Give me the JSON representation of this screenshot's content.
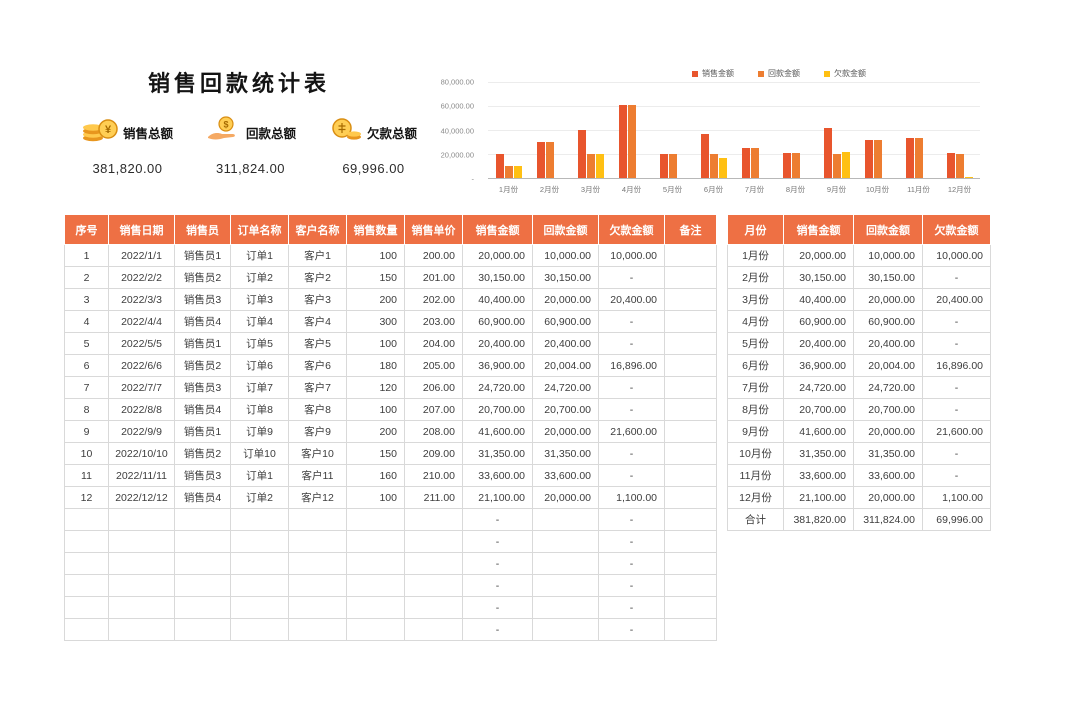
{
  "page": {
    "title": "销售回款统计表"
  },
  "colors": {
    "table_header_bg": "#EE7044",
    "series_sales": "#E8552D",
    "series_collection": "#ED7D31",
    "series_debt": "#FFC013"
  },
  "summary": {
    "items": [
      {
        "icon": "coins-yen-icon",
        "label": "销售总额",
        "value": "381,820.00"
      },
      {
        "icon": "hand-coin-icon",
        "label": "回款总额",
        "value": "311,824.00"
      },
      {
        "icon": "coins-icon",
        "label": "欠款总额",
        "value": "69,996.00"
      }
    ]
  },
  "chart_data": {
    "type": "bar",
    "title": "",
    "categories": [
      "1月份",
      "2月份",
      "3月份",
      "4月份",
      "5月份",
      "6月份",
      "7月份",
      "8月份",
      "9月份",
      "10月份",
      "11月份",
      "12月份"
    ],
    "series": [
      {
        "name": "销售金额",
        "color": "#E8552D",
        "values": [
          20000,
          30150,
          40400,
          60900,
          20400,
          36900,
          24720,
          20700,
          41600,
          31350,
          33600,
          21100
        ]
      },
      {
        "name": "回款金额",
        "color": "#ED7D31",
        "values": [
          10000,
          30150,
          20000,
          60900,
          20400,
          20004,
          24720,
          20700,
          20000,
          31350,
          33600,
          20000
        ]
      },
      {
        "name": "欠款金额",
        "color": "#FFC013",
        "values": [
          10000,
          0,
          20400,
          0,
          0,
          16896,
          0,
          0,
          21600,
          0,
          0,
          1100
        ]
      }
    ],
    "ylim": [
      0,
      80000
    ],
    "ytick_labels": [
      "80,000.00",
      "60,000.00",
      "40,000.00",
      "20,000.00",
      "-"
    ],
    "legend_position": "top-right",
    "grid": true
  },
  "main_table": {
    "headers": [
      "序号",
      "销售日期",
      "销售员",
      "订单名称",
      "客户名称",
      "销售数量",
      "销售单价",
      "销售金额",
      "回款金额",
      "欠款金额",
      "备注"
    ],
    "rows": [
      [
        "1",
        "2022/1/1",
        "销售员1",
        "订单1",
        "客户1",
        "100",
        "200.00",
        "20,000.00",
        "10,000.00",
        "10,000.00",
        ""
      ],
      [
        "2",
        "2022/2/2",
        "销售员2",
        "订单2",
        "客户2",
        "150",
        "201.00",
        "30,150.00",
        "30,150.00",
        "-",
        ""
      ],
      [
        "3",
        "2022/3/3",
        "销售员3",
        "订单3",
        "客户3",
        "200",
        "202.00",
        "40,400.00",
        "20,000.00",
        "20,400.00",
        ""
      ],
      [
        "4",
        "2022/4/4",
        "销售员4",
        "订单4",
        "客户4",
        "300",
        "203.00",
        "60,900.00",
        "60,900.00",
        "-",
        ""
      ],
      [
        "5",
        "2022/5/5",
        "销售员1",
        "订单5",
        "客户5",
        "100",
        "204.00",
        "20,400.00",
        "20,400.00",
        "-",
        ""
      ],
      [
        "6",
        "2022/6/6",
        "销售员2",
        "订单6",
        "客户6",
        "180",
        "205.00",
        "36,900.00",
        "20,004.00",
        "16,896.00",
        ""
      ],
      [
        "7",
        "2022/7/7",
        "销售员3",
        "订单7",
        "客户7",
        "120",
        "206.00",
        "24,720.00",
        "24,720.00",
        "-",
        ""
      ],
      [
        "8",
        "2022/8/8",
        "销售员4",
        "订单8",
        "客户8",
        "100",
        "207.00",
        "20,700.00",
        "20,700.00",
        "-",
        ""
      ],
      [
        "9",
        "2022/9/9",
        "销售员1",
        "订单9",
        "客户9",
        "200",
        "208.00",
        "41,600.00",
        "20,000.00",
        "21,600.00",
        ""
      ],
      [
        "10",
        "2022/10/10",
        "销售员2",
        "订单10",
        "客户10",
        "150",
        "209.00",
        "31,350.00",
        "31,350.00",
        "-",
        ""
      ],
      [
        "11",
        "2022/11/11",
        "销售员3",
        "订单1",
        "客户11",
        "160",
        "210.00",
        "33,600.00",
        "33,600.00",
        "-",
        ""
      ],
      [
        "12",
        "2022/12/12",
        "销售员4",
        "订单2",
        "客户12",
        "100",
        "211.00",
        "21,100.00",
        "20,000.00",
        "1,100.00",
        ""
      ],
      [
        "",
        "",
        "",
        "",
        "",
        "",
        "",
        "-",
        "",
        "-",
        ""
      ],
      [
        "",
        "",
        "",
        "",
        "",
        "",
        "",
        "-",
        "",
        "-",
        ""
      ],
      [
        "",
        "",
        "",
        "",
        "",
        "",
        "",
        "-",
        "",
        "-",
        ""
      ],
      [
        "",
        "",
        "",
        "",
        "",
        "",
        "",
        "-",
        "",
        "-",
        ""
      ],
      [
        "",
        "",
        "",
        "",
        "",
        "",
        "",
        "-",
        "",
        "-",
        ""
      ],
      [
        "",
        "",
        "",
        "",
        "",
        "",
        "",
        "-",
        "",
        "-",
        ""
      ]
    ]
  },
  "month_table": {
    "headers": [
      "月份",
      "销售金额",
      "回款金额",
      "欠款金额"
    ],
    "rows": [
      [
        "1月份",
        "20,000.00",
        "10,000.00",
        "10,000.00"
      ],
      [
        "2月份",
        "30,150.00",
        "30,150.00",
        "-"
      ],
      [
        "3月份",
        "40,400.00",
        "20,000.00",
        "20,400.00"
      ],
      [
        "4月份",
        "60,900.00",
        "60,900.00",
        "-"
      ],
      [
        "5月份",
        "20,400.00",
        "20,400.00",
        "-"
      ],
      [
        "6月份",
        "36,900.00",
        "20,004.00",
        "16,896.00"
      ],
      [
        "7月份",
        "24,720.00",
        "24,720.00",
        "-"
      ],
      [
        "8月份",
        "20,700.00",
        "20,700.00",
        "-"
      ],
      [
        "9月份",
        "41,600.00",
        "20,000.00",
        "21,600.00"
      ],
      [
        "10月份",
        "31,350.00",
        "31,350.00",
        "-"
      ],
      [
        "11月份",
        "33,600.00",
        "33,600.00",
        "-"
      ],
      [
        "12月份",
        "21,100.00",
        "20,000.00",
        "1,100.00"
      ]
    ],
    "total_row": [
      "合计",
      "381,820.00",
      "311,824.00",
      "69,996.00"
    ]
  }
}
